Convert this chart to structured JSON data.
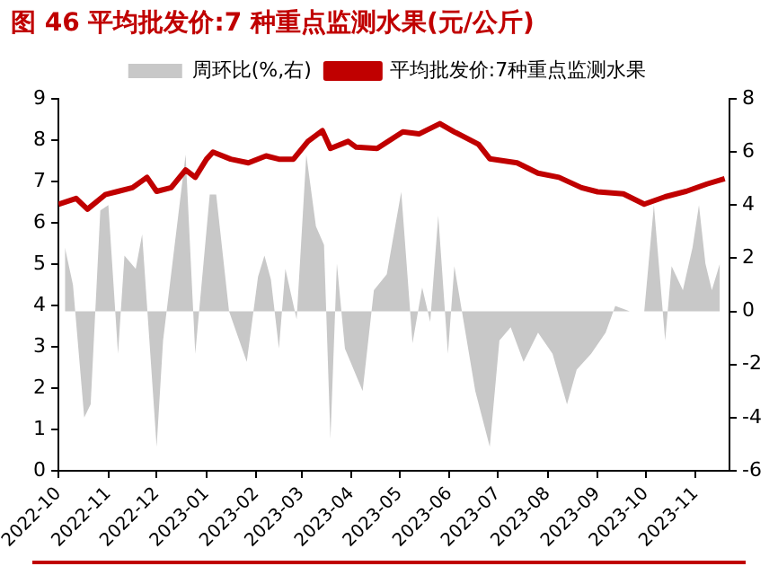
{
  "chart_data": {
    "type": "line",
    "title": "图 46 平均批发价:7 种重点监测水果(元/公斤)",
    "xlim": [
      "2022-10-01",
      "2023-11-22"
    ],
    "xticks": [
      "2022-10",
      "2022-11",
      "2022-12",
      "2023-01",
      "2023-02",
      "2023-03",
      "2023-04",
      "2023-05",
      "2023-06",
      "2023-07",
      "2023-08",
      "2023-09",
      "2023-10",
      "2023-11"
    ],
    "ylim": [
      0,
      9
    ],
    "yticks": [
      0,
      1,
      2,
      3,
      4,
      5,
      6,
      7,
      8,
      9
    ],
    "y2lim": [
      -6,
      8
    ],
    "y2ticks": [
      -6,
      -4,
      -2,
      0,
      2,
      4,
      6,
      8
    ],
    "grid": false,
    "legend": "top",
    "series": [
      {
        "name": "周环比(%,右)",
        "type": "area",
        "axis": "y2",
        "color": "#c8c8c8",
        "x": [
          "2022-10-05",
          "2022-10-10",
          "2022-10-17",
          "2022-10-21",
          "2022-10-27",
          "2022-11-01",
          "2022-11-07",
          "2022-11-11",
          "2022-11-18",
          "2022-11-22",
          "2022-12-01",
          "2022-12-05",
          "2022-12-12",
          "2022-12-19",
          "2022-12-25",
          "2023-01-03",
          "2023-01-07",
          "2023-01-15",
          "2023-01-26",
          "2023-02-02",
          "2023-02-06",
          "2023-02-10",
          "2023-02-15",
          "2023-02-19",
          "2023-02-26",
          "2023-03-04",
          "2023-03-10",
          "2023-03-15",
          "2023-03-19",
          "2023-03-23",
          "2023-03-28",
          "2023-04-08",
          "2023-04-15",
          "2023-04-23",
          "2023-05-02",
          "2023-05-09",
          "2023-05-15",
          "2023-05-20",
          "2023-05-25",
          "2023-05-31",
          "2023-06-04",
          "2023-06-17",
          "2023-06-26",
          "2023-07-02",
          "2023-07-09",
          "2023-07-17",
          "2023-07-26",
          "2023-08-04",
          "2023-08-13",
          "2023-08-19",
          "2023-08-28",
          "2023-09-06",
          "2023-09-12",
          "2023-09-21",
          "2023-09-30",
          "2023-10-06",
          "2023-10-13",
          "2023-10-17",
          "2023-10-24",
          "2023-10-30",
          "2023-11-03",
          "2023-11-07",
          "2023-11-11",
          "2023-11-16"
        ],
        "values": [
          2.4,
          1.0,
          -4.0,
          -3.5,
          3.8,
          4.0,
          -1.6,
          2.1,
          1.6,
          2.9,
          -5.1,
          -1.1,
          2.4,
          5.9,
          -1.6,
          4.4,
          4.4,
          0,
          -1.9,
          1.3,
          2.1,
          1.2,
          -1.4,
          1.6,
          -0.3,
          5.9,
          3.2,
          2.5,
          -4.8,
          1.8,
          -1.4,
          -3.0,
          0.8,
          1.4,
          4.5,
          -1.2,
          0.9,
          -0.4,
          3.6,
          -1.6,
          1.7,
          -3.0,
          -5.1,
          -1.1,
          -0.6,
          -1.9,
          -0.8,
          -1.6,
          -3.5,
          -2.2,
          -1.6,
          -0.8,
          0.2,
          0,
          0,
          4.0,
          -1.1,
          1.7,
          0.8,
          2.4,
          4.0,
          1.8,
          0.8,
          1.8
        ]
      },
      {
        "name": "平均批发价:7种重点监测水果",
        "type": "line",
        "color": "#c00000",
        "x": [
          "2022-10-01",
          "2022-10-12",
          "2022-10-19",
          "2022-10-30",
          "2022-11-07",
          "2022-11-16",
          "2022-11-25",
          "2022-12-01",
          "2022-12-10",
          "2022-12-19",
          "2022-12-25",
          "2023-01-01",
          "2023-01-05",
          "2023-01-16",
          "2023-01-27",
          "2023-02-07",
          "2023-02-15",
          "2023-02-24",
          "2023-03-05",
          "2023-03-14",
          "2023-03-19",
          "2023-03-30",
          "2023-04-04",
          "2023-04-17",
          "2023-05-03",
          "2023-05-13",
          "2023-05-26",
          "2023-06-04",
          "2023-06-19",
          "2023-06-26",
          "2023-07-13",
          "2023-07-26",
          "2023-08-08",
          "2023-08-22",
          "2023-09-01",
          "2023-09-17",
          "2023-09-30",
          "2023-10-13",
          "2023-10-26",
          "2023-11-08",
          "2023-11-19"
        ],
        "values": [
          6.45,
          6.59,
          6.33,
          6.68,
          6.76,
          6.85,
          7.1,
          6.76,
          6.85,
          7.28,
          7.1,
          7.54,
          7.71,
          7.54,
          7.45,
          7.62,
          7.54,
          7.54,
          7.97,
          8.23,
          7.8,
          7.97,
          7.83,
          7.8,
          8.2,
          8.15,
          8.4,
          8.2,
          7.9,
          7.55,
          7.45,
          7.2,
          7.1,
          6.85,
          6.75,
          6.7,
          6.45,
          6.63,
          6.76,
          6.94,
          7.07
        ]
      }
    ]
  }
}
